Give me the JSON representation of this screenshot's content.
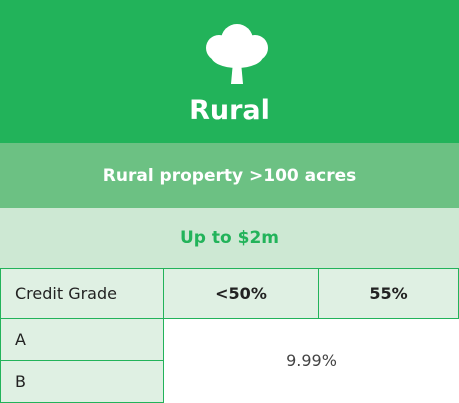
{
  "header": {
    "title": "Rural"
  },
  "subtitle": "Rural property >100 acres",
  "limit": "Up to $2m",
  "table": {
    "columns": [
      "Credit Grade",
      "<50%",
      "55%"
    ],
    "rows": [
      "A",
      "B"
    ],
    "rate": "9.99%"
  }
}
